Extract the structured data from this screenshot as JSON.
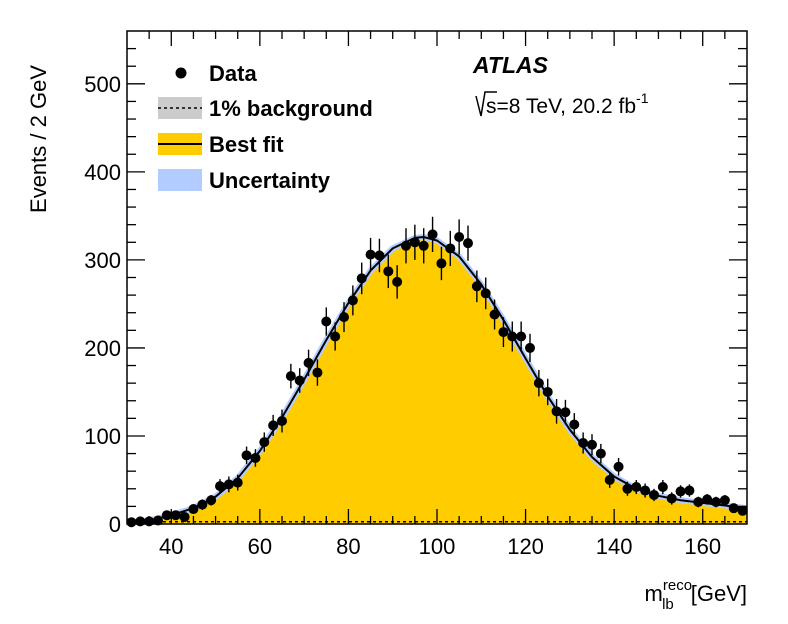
{
  "chart_data": {
    "type": "scatter",
    "title": "",
    "xlabel": "m_lb^reco [GeV]",
    "xlabel_parts": {
      "symbol": "m",
      "sub": "lb",
      "sup": "reco",
      "unit": "[GeV]"
    },
    "ylabel": "Events / 2 GeV",
    "xlim": [
      30,
      170
    ],
    "ylim": [
      0,
      560
    ],
    "x_ticks": [
      40,
      60,
      80,
      100,
      120,
      140,
      160
    ],
    "y_ticks": [
      0,
      100,
      200,
      300,
      400,
      500
    ],
    "x_tick_labels": [
      "40",
      "60",
      "80",
      "100",
      "120",
      "140",
      "160"
    ],
    "y_tick_labels": [
      "0",
      "100",
      "200",
      "300",
      "400",
      "500"
    ],
    "annotations": {
      "experiment": "ATLAS",
      "energy_prefix": "s=8 TeV, 20.2 fb",
      "energy_sup": "-1"
    },
    "legend": {
      "position": "top-left",
      "entries": [
        {
          "label": "Data",
          "style": "marker"
        },
        {
          "label": "1% background",
          "style": "dashed-box"
        },
        {
          "label": "Best fit",
          "style": "line-box"
        },
        {
          "label": "Uncertainty",
          "style": "box"
        }
      ]
    },
    "colors": {
      "fit_fill": "#ffcc00",
      "uncertainty": "#b3ccff",
      "background_box": "#cccccc",
      "line": "#000000",
      "data": "#000000"
    },
    "series": [
      {
        "name": "Data",
        "x": [
          31,
          33,
          35,
          37,
          39,
          41,
          43,
          45,
          47,
          49,
          51,
          53,
          55,
          57,
          59,
          61,
          63,
          65,
          67,
          69,
          71,
          73,
          75,
          77,
          79,
          81,
          83,
          85,
          87,
          89,
          91,
          93,
          95,
          97,
          99,
          101,
          103,
          105,
          107,
          109,
          111,
          113,
          115,
          117,
          119,
          121,
          123,
          125,
          127,
          129,
          131,
          133,
          135,
          137,
          139,
          141,
          143,
          145,
          147,
          149,
          151,
          153,
          155,
          157,
          159,
          161,
          163,
          165,
          167,
          169
        ],
        "y": [
          2,
          3,
          3,
          4,
          10,
          10,
          8,
          17,
          22,
          27,
          43,
          45,
          47,
          78,
          75,
          93,
          112,
          117,
          168,
          163,
          183,
          172,
          230,
          213,
          235,
          254,
          279,
          306,
          305,
          287,
          275,
          316,
          320,
          316,
          329,
          296,
          313,
          326,
          319,
          270,
          262,
          238,
          218,
          213,
          213,
          200,
          160,
          150,
          128,
          127,
          113,
          92,
          90,
          80,
          50,
          65,
          40,
          42,
          38,
          33,
          42,
          29,
          37,
          38,
          25,
          28,
          25,
          27,
          18,
          15
        ],
        "err": [
          2,
          2,
          2,
          3,
          4,
          4,
          4,
          5,
          6,
          6,
          8,
          9,
          9,
          10,
          10,
          11,
          12,
          13,
          14,
          14,
          15,
          15,
          16,
          16,
          17,
          17,
          18,
          19,
          19,
          19,
          19,
          20,
          20,
          20,
          20,
          19,
          20,
          20,
          20,
          18,
          18,
          17,
          17,
          17,
          17,
          16,
          15,
          15,
          14,
          14,
          13,
          12,
          12,
          11,
          9,
          10,
          8,
          8,
          8,
          7,
          8,
          7,
          7,
          7,
          6,
          6,
          6,
          6,
          5,
          5
        ]
      },
      {
        "name": "Best fit",
        "x": [
          30,
          35,
          40,
          45,
          50,
          55,
          60,
          65,
          70,
          75,
          80,
          85,
          90,
          95,
          97,
          100,
          105,
          110,
          115,
          120,
          125,
          130,
          135,
          140,
          145,
          150,
          155,
          160,
          165,
          170
        ],
        "y": [
          2,
          4,
          10,
          18,
          31,
          52,
          83,
          121,
          164,
          209,
          251,
          288,
          313,
          325,
          326,
          322,
          304,
          272,
          232,
          188,
          145,
          107,
          76,
          54,
          40,
          32,
          27,
          24,
          21,
          18
        ]
      },
      {
        "name": "1% background",
        "x": [
          30,
          170
        ],
        "y": [
          2.5,
          2.5
        ]
      }
    ]
  }
}
